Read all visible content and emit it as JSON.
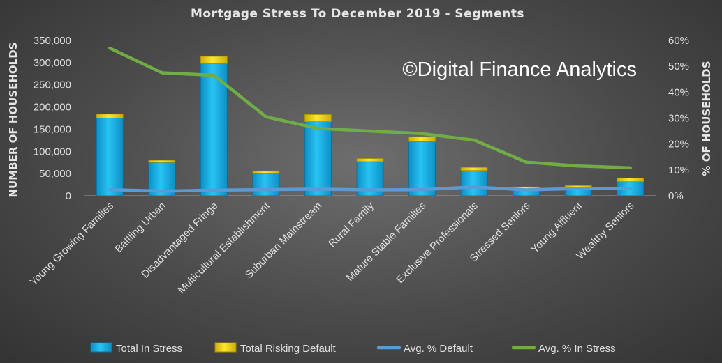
{
  "chart_data": {
    "type": "bar",
    "title": "Mortgage Stress To December 2019 - Segments",
    "ylabel_left": "NUMBER OF HOUSEHOLDS",
    "ylabel_right": "% OF HOUSEHOLDS",
    "ylim_left": [
      0,
      350000
    ],
    "ylim_right": [
      0,
      60
    ],
    "yticks_left": [
      "0",
      "50,000",
      "100,000",
      "150,000",
      "200,000",
      "250,000",
      "300,000",
      "350,000"
    ],
    "yticks_right": [
      "0%",
      "10%",
      "20%",
      "30%",
      "40%",
      "50%",
      "60%"
    ],
    "categories": [
      "Young Growing Families",
      "Battling Urban",
      "Disadvantaged Fringe",
      "Multicultural Establishment",
      "Suburban Mainstream",
      "Rural Family",
      "Mature Stable Families",
      "Exclusive Professionals",
      "Stressed Seniors",
      "Young Affluent",
      "Wealthy Seniors"
    ],
    "series": [
      {
        "name": "Total In Stress",
        "kind": "bar",
        "axis": "left",
        "color": "#1fb5ea",
        "values": [
          175000,
          75000,
          298000,
          50000,
          167000,
          77000,
          122000,
          57000,
          16000,
          18000,
          32000
        ]
      },
      {
        "name": "Total Risking Default",
        "kind": "bar",
        "axis": "left",
        "color": "#f1d514",
        "values": [
          9000,
          5000,
          16000,
          6000,
          16000,
          7000,
          11000,
          7000,
          4000,
          5000,
          8000
        ]
      },
      {
        "name": "Avg. % Default",
        "kind": "line",
        "axis": "right",
        "color": "#5b9bd5",
        "values": [
          2.4,
          1.8,
          2.2,
          2.4,
          2.6,
          2.3,
          2.4,
          3.4,
          2.3,
          2.8,
          2.9
        ]
      },
      {
        "name": "Avg. % In Stress",
        "kind": "line",
        "axis": "right",
        "color": "#70ad47",
        "values": [
          57.0,
          47.5,
          46.5,
          30.5,
          26.0,
          25.0,
          24.0,
          21.5,
          13.0,
          11.5,
          10.8
        ]
      }
    ],
    "stacked": true,
    "legend": "bottom",
    "grid": false,
    "annotation": "©Digital Finance Analytics"
  }
}
